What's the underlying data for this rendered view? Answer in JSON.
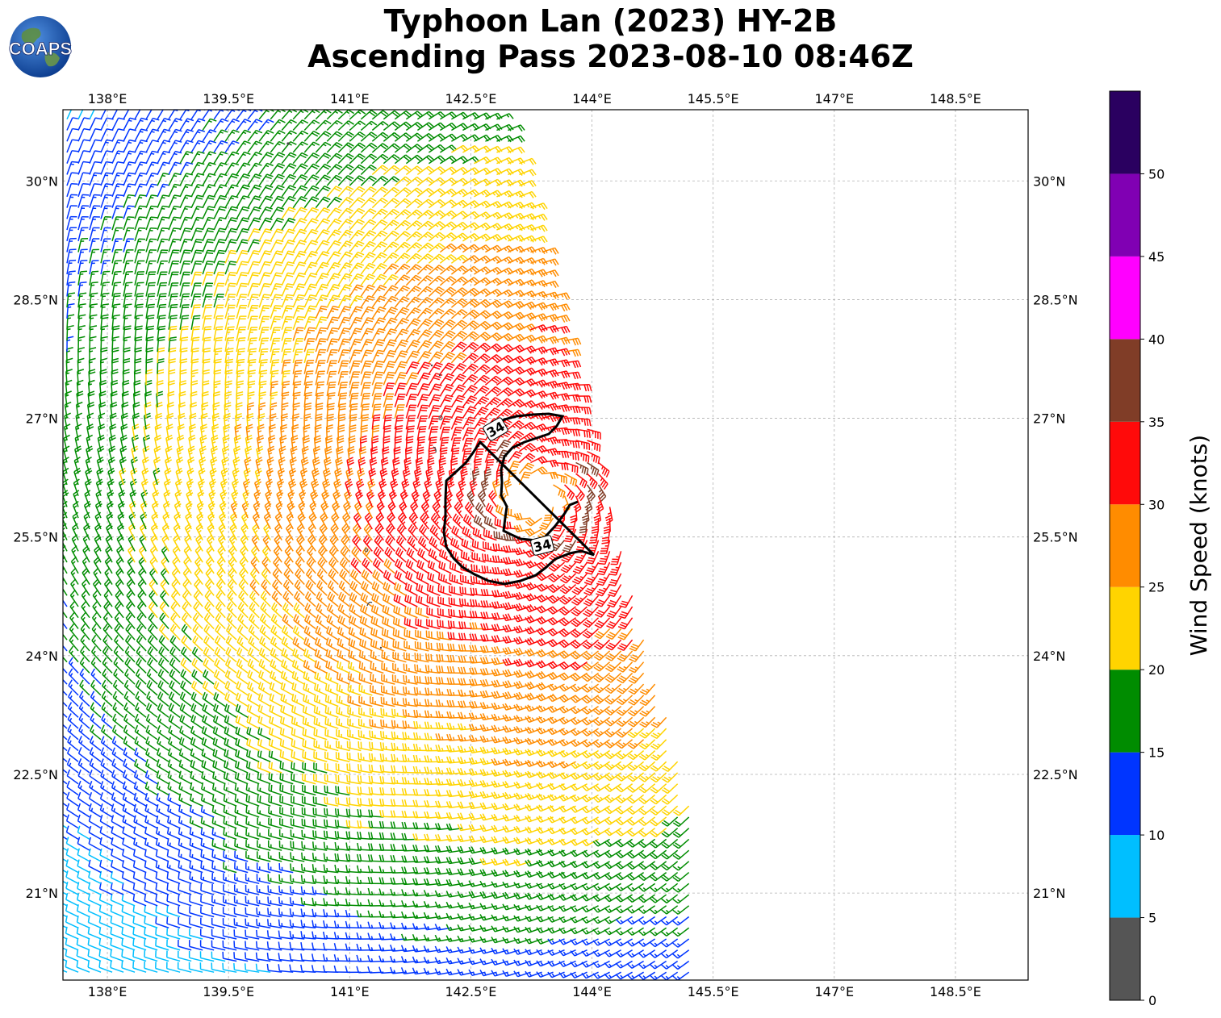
{
  "title": {
    "line1": "Typhoon Lan (2023) HY-2B",
    "line2": "Ascending Pass 2023-08-10 08:46Z"
  },
  "logo": {
    "text": "COAPS",
    "icon": "globe-icon"
  },
  "map": {
    "lon_range": [
      137.45,
      149.4
    ],
    "lat_range": [
      19.9,
      30.9
    ],
    "lon_ticks": [
      "138°E",
      "139.5°E",
      "141°E",
      "142.5°E",
      "144°E",
      "145.5°E",
      "147°E",
      "148.5°E"
    ],
    "lon_tick_values": [
      138,
      139.5,
      141,
      142.5,
      144,
      145.5,
      147,
      148.5
    ],
    "lat_ticks": [
      "30°N",
      "28.5°N",
      "27°N",
      "25.5°N",
      "24°N",
      "22.5°N",
      "21°N"
    ],
    "lat_tick_values": [
      30,
      28.5,
      27,
      25.5,
      24,
      22.5,
      21
    ],
    "grid": true,
    "storm_center": [
      143.3,
      26.0
    ],
    "contour_label": "34",
    "contour_level_knots": 34
  },
  "colorbar": {
    "label": "Wind Speed (knots)",
    "ticks": [
      "0",
      "5",
      "10",
      "15",
      "20",
      "25",
      "30",
      "35",
      "40",
      "45",
      "50"
    ],
    "bins": [
      {
        "min": 0,
        "max": 5,
        "color": "#555555"
      },
      {
        "min": 5,
        "max": 10,
        "color": "#00bfff"
      },
      {
        "min": 10,
        "max": 15,
        "color": "#0035ff"
      },
      {
        "min": 15,
        "max": 20,
        "color": "#008c00"
      },
      {
        "min": 20,
        "max": 25,
        "color": "#ffd400"
      },
      {
        "min": 25,
        "max": 30,
        "color": "#ff8c00"
      },
      {
        "min": 30,
        "max": 35,
        "color": "#ff0a0a"
      },
      {
        "min": 35,
        "max": 40,
        "color": "#803d27"
      },
      {
        "min": 40,
        "max": 45,
        "color": "#ff00ff"
      },
      {
        "min": 45,
        "max": 50,
        "color": "#8000b3"
      },
      {
        "min": 50,
        "max": 55,
        "color": "#2a0060"
      }
    ]
  }
}
